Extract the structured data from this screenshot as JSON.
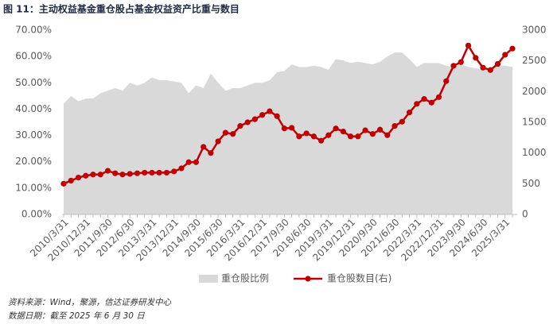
{
  "chart_data": {
    "type": "area-line",
    "title": "图 11：主动权益基金重仓股占基金权益资产比重与数目",
    "notes": [
      "资料来源：Wind，聚源，信达证券研发中心",
      "数据日期：截至 2025 年 6 月 30 日"
    ],
    "categories": [
      "2010/3/31",
      null,
      null,
      "2010/12/31",
      null,
      null,
      "2011/9/30",
      null,
      null,
      "2012/6/30",
      null,
      null,
      "2013/3/31",
      null,
      null,
      "2013/12/31",
      null,
      null,
      "2014/9/30",
      null,
      null,
      "2015/6/30",
      null,
      null,
      "2016/3/31",
      null,
      null,
      "2016/12/31",
      null,
      null,
      "2017/9/30",
      null,
      null,
      "2018/6/30",
      null,
      null,
      "2019/3/31",
      null,
      null,
      "2019/12/31",
      null,
      null,
      "2020/9/30",
      null,
      null,
      "2021/6/30",
      null,
      null,
      "2022/3/31",
      null,
      null,
      "2022/12/31",
      null,
      null,
      "2023/9/30",
      null,
      null,
      "2024/6/30",
      null,
      null,
      "2025/3/31",
      null
    ],
    "series": [
      {
        "name": "重仓股比例",
        "type": "area",
        "color": "#d9d9d9",
        "axis": "y",
        "values": [
          42,
          45,
          43,
          44,
          44,
          46,
          47,
          48,
          47,
          50,
          49,
          50,
          52,
          51,
          51,
          50.5,
          50,
          46,
          49,
          48,
          53.5,
          50,
          47,
          48,
          48,
          49,
          50,
          50,
          51,
          54,
          54.5,
          57,
          56,
          56,
          56.5,
          56,
          55,
          59,
          58.5,
          57.5,
          58,
          57.5,
          57,
          58,
          60,
          61.5,
          61.5,
          59,
          56,
          57.5,
          57.5,
          57.5,
          56.5,
          56,
          57,
          56,
          55.5,
          55,
          56,
          56.5,
          56.5,
          56
        ]
      },
      {
        "name": "重仓股数目(右)",
        "type": "line",
        "color": "#c00000",
        "axis": "y2",
        "values": [
          500,
          550,
          600,
          630,
          650,
          650,
          710,
          670,
          650,
          660,
          670,
          680,
          680,
          680,
          680,
          700,
          750,
          850,
          850,
          1100,
          1000,
          1190,
          1330,
          1310,
          1440,
          1500,
          1550,
          1620,
          1680,
          1600,
          1400,
          1410,
          1270,
          1320,
          1270,
          1200,
          1290,
          1400,
          1350,
          1270,
          1270,
          1370,
          1310,
          1380,
          1290,
          1440,
          1510,
          1660,
          1800,
          1880,
          1820,
          1910,
          2170,
          2420,
          2480,
          2750,
          2550,
          2390,
          2350,
          2450,
          2600,
          2700
        ]
      }
    ],
    "ylim": [
      0,
      70
    ],
    "yticks": [
      {
        "value": 0,
        "label": "0.00%"
      },
      {
        "value": 10,
        "label": "10.00%"
      },
      {
        "value": 20,
        "label": "20.00%"
      },
      {
        "value": 30,
        "label": "30.00%"
      },
      {
        "value": 40,
        "label": "40.00%"
      },
      {
        "value": 50,
        "label": "50.00%"
      },
      {
        "value": 60,
        "label": "60.00%"
      },
      {
        "value": 70,
        "label": "70.00%"
      }
    ],
    "y2lim": [
      0,
      3000
    ],
    "y2ticks": [
      0,
      500,
      1000,
      1500,
      2000,
      2500,
      3000
    ]
  }
}
